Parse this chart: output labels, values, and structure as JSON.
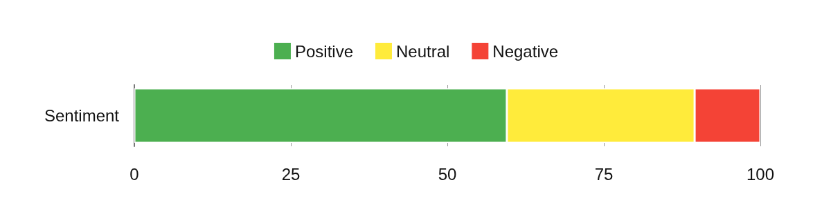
{
  "chart_data": {
    "type": "bar",
    "orientation": "horizontal",
    "stacked": true,
    "categories": [
      "Sentiment"
    ],
    "series": [
      {
        "name": "Positive",
        "color": "#4caf50",
        "values": [
          59.5
        ]
      },
      {
        "name": "Neutral",
        "color": "#ffeb3b",
        "values": [
          30
        ]
      },
      {
        "name": "Negative",
        "color": "#f44336",
        "values": [
          10.5
        ]
      }
    ],
    "xlim": [
      0,
      100
    ],
    "xticks": [
      0,
      25,
      50,
      75,
      100
    ],
    "grid": "x",
    "legend": "top"
  }
}
